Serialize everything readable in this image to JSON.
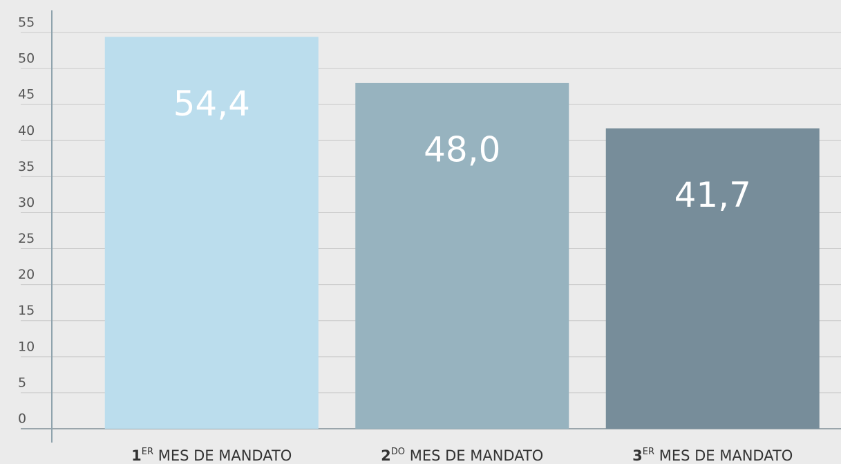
{
  "chart_data": {
    "type": "bar",
    "categories": [
      "1ER MES DE MANDATO",
      "2DO MES DE MANDATO",
      "3ER MES DE MANDATO"
    ],
    "values": [
      54.4,
      48.0,
      41.7
    ],
    "value_labels": [
      "54,4",
      "48,0",
      "41,7"
    ],
    "colors": [
      "#bbdded",
      "#97b3bf",
      "#778d9a"
    ],
    "ylim": [
      0,
      55
    ],
    "yticks": [
      0,
      5,
      10,
      15,
      20,
      25,
      30,
      35,
      40,
      45,
      50,
      55
    ],
    "grid": true
  }
}
